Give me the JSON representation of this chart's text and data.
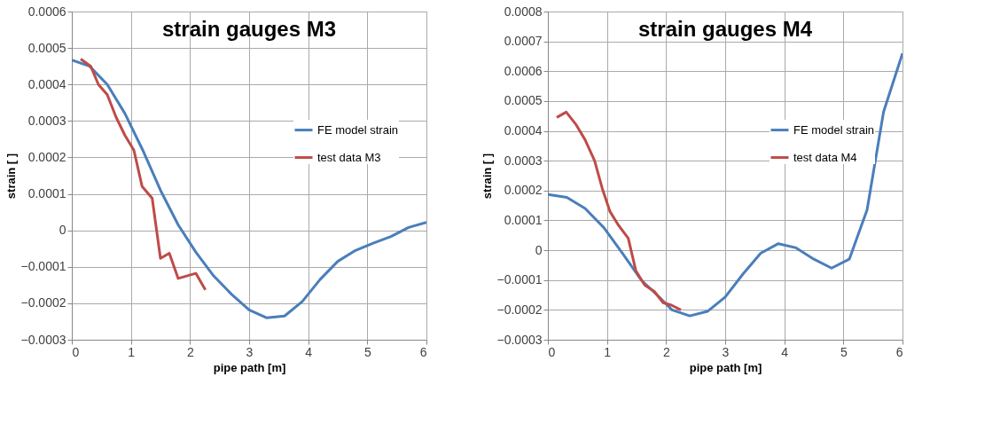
{
  "chart_data": [
    {
      "type": "line",
      "title": "strain gauges M3",
      "xlabel": "pipe path [m]",
      "ylabel": "strain [ ]",
      "xlim": [
        0,
        6
      ],
      "xticks": [
        0,
        1,
        2,
        3,
        4,
        5,
        6
      ],
      "ylim": [
        -0.0003,
        0.0006
      ],
      "yticks": [
        -0.0003,
        -0.0002,
        -0.0001,
        0,
        0.0001,
        0.0002,
        0.0003,
        0.0004,
        0.0005,
        0.0006
      ],
      "grid": true,
      "legend": "right",
      "marker": "none",
      "line_style": "solid",
      "series": [
        {
          "name": "FE model strain",
          "color": "#4a7ebb",
          "x": [
            0,
            0.3,
            0.6,
            0.9,
            1.2,
            1.5,
            1.8,
            2.1,
            2.4,
            2.7,
            3.0,
            3.3,
            3.6,
            3.9,
            4.2,
            4.5,
            4.8,
            5.1,
            5.4,
            5.7,
            6.0
          ],
          "values": [
            0.000467,
            0.00045,
            0.0004,
            0.00032,
            0.00022,
            0.00011,
            1.5e-05,
            -6e-05,
            -0.000125,
            -0.000175,
            -0.000218,
            -0.00024,
            -0.000235,
            -0.000195,
            -0.000135,
            -8.5e-05,
            -5.5e-05,
            -3.5e-05,
            -1.7e-05,
            8e-06,
            2.2e-05
          ]
        },
        {
          "name": "test data M3",
          "color": "#be4b48",
          "x": [
            0.15,
            0.32,
            0.45,
            0.6,
            0.75,
            0.9,
            1.05,
            1.19,
            1.36,
            1.5,
            1.65,
            1.8,
            2.1,
            2.26
          ],
          "values": [
            0.00047,
            0.00045,
            0.0004,
            0.000372,
            0.00031,
            0.00026,
            0.00022,
            0.00012,
            8.8e-05,
            -7.7e-05,
            -6.3e-05,
            -0.000132,
            -0.000118,
            -0.000163
          ]
        }
      ]
    },
    {
      "type": "line",
      "title": "strain gauges M4",
      "xlabel": "pipe path [m]",
      "ylabel": "strain [ ]",
      "xlim": [
        0,
        6
      ],
      "xticks": [
        0,
        1,
        2,
        3,
        4,
        5,
        6
      ],
      "ylim": [
        -0.0003,
        0.0008
      ],
      "yticks": [
        -0.0003,
        -0.0002,
        -0.0001,
        0,
        0.0001,
        0.0002,
        0.0003,
        0.0004,
        0.0005,
        0.0006,
        0.0007,
        0.0008
      ],
      "grid": true,
      "legend": "right",
      "marker": "none",
      "line_style": "solid",
      "series": [
        {
          "name": "FE model strain",
          "color": "#4a7ebb",
          "x": [
            0,
            0.32,
            0.63,
            0.95,
            1.26,
            1.58,
            1.89,
            2.1,
            2.4,
            2.7,
            3.0,
            3.3,
            3.6,
            3.9,
            4.2,
            4.5,
            4.8,
            5.1,
            5.4,
            5.68,
            6.0
          ],
          "values": [
            0.000187,
            0.000177,
            0.00014,
            7.5e-05,
            -1e-05,
            -0.0001,
            -0.000158,
            -0.0002,
            -0.00022,
            -0.000205,
            -0.000157,
            -8e-05,
            -1e-05,
            2.2e-05,
            8e-06,
            -3e-05,
            -6e-05,
            -3e-05,
            0.000135,
            0.000464,
            0.00066
          ]
        },
        {
          "name": "test data M4",
          "color": "#be4b48",
          "x": [
            0.15,
            0.31,
            0.47,
            0.63,
            0.79,
            0.92,
            1.05,
            1.19,
            1.36,
            1.49,
            1.64,
            1.8,
            1.95,
            2.09,
            2.25
          ],
          "values": [
            0.000445,
            0.000463,
            0.000423,
            0.00037,
            0.0003,
            0.000207,
            0.00013,
            8.5e-05,
            4e-05,
            -7e-05,
            -0.000117,
            -0.000138,
            -0.000176,
            -0.000184,
            -0.0002
          ]
        }
      ]
    }
  ]
}
